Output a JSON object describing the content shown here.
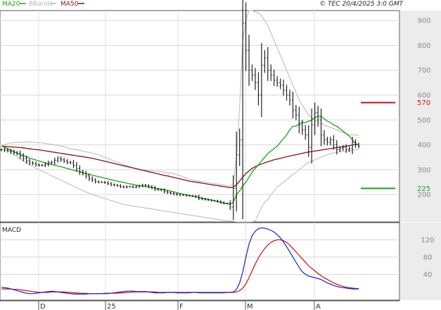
{
  "header": {
    "legend": [
      {
        "label": "MA20",
        "color": "#19a51a"
      },
      {
        "label": "BBands",
        "color": "#b8b8b8"
      },
      {
        "label": "MA50",
        "color": "#8b1010"
      }
    ],
    "source": "© TEC 20/4/2025 3:0 GMT"
  },
  "chart_data": [
    {
      "type": "candlestick",
      "x_ticks": [
        "D",
        "25",
        "F",
        "M",
        "A"
      ],
      "y_ticks": [
        200,
        300,
        400,
        500,
        600,
        700,
        800,
        900
      ],
      "ylim": [
        90,
        940
      ],
      "grid": true,
      "legend_placement": "top-left",
      "colors": {
        "price": "#222222",
        "ma20": "#19a51a",
        "ma50": "#8b1010",
        "bbands": "#b8b8b8"
      },
      "reference_lines": [
        {
          "label": "570",
          "value": 570,
          "color": "#cc1111"
        },
        {
          "label": "225",
          "value": 225,
          "color": "#19a51a"
        }
      ],
      "series": {
        "price_close": [
          380,
          378,
          376,
          372,
          368,
          365,
          355,
          345,
          335,
          328,
          325,
          320,
          318,
          318,
          322,
          328,
          330,
          338,
          345,
          340,
          335,
          330,
          328,
          318,
          305,
          292,
          285,
          275,
          265,
          258,
          252,
          250,
          250,
          248,
          244,
          240,
          238,
          236,
          232,
          230,
          232,
          232,
          230,
          232,
          235,
          238,
          236,
          232,
          228,
          222,
          220,
          218,
          212,
          208,
          205,
          202,
          200,
          198,
          198,
          196,
          195,
          194,
          192,
          185,
          182,
          180,
          178,
          176,
          175,
          172,
          168,
          165,
          165,
          150,
          225,
          360,
          420,
          890,
          780,
          700,
          680,
          650,
          600,
          720,
          750,
          700,
          680,
          660,
          650,
          640,
          620,
          600,
          580,
          540,
          520,
          480,
          460,
          440,
          390,
          480,
          530,
          500,
          440,
          420,
          410,
          420,
          400,
          380,
          385,
          390,
          380,
          385,
          410,
          400,
          395
        ],
        "ma20": [
          395,
          390,
          385,
          379,
          373,
          367,
          362,
          357,
          352,
          347,
          343,
          339,
          335,
          331,
          328,
          324,
          321,
          318,
          315,
          312,
          309,
          305,
          302,
          298,
          295,
          291,
          288,
          284,
          281,
          278,
          275,
          272,
          269,
          266,
          263,
          260,
          257,
          254,
          251,
          249,
          246,
          243,
          241,
          238,
          236,
          234,
          232,
          230,
          228,
          226,
          224,
          222,
          220,
          217,
          214,
          211,
          208,
          205,
          202,
          199,
          196,
          193,
          190,
          188,
          186,
          184,
          181,
          178,
          175,
          172,
          169,
          166,
          163,
          161,
          170,
          200,
          215,
          235,
          250,
          270,
          290,
          305,
          320,
          335,
          350,
          365,
          375,
          385,
          395,
          410,
          425,
          440,
          460,
          475,
          475,
          485,
          490,
          490,
          495,
          500,
          510,
          515,
          515,
          505,
          495,
          490,
          480,
          475,
          465,
          455,
          445,
          435,
          420,
          405,
          400
        ],
        "ma50": [
          395,
          394,
          393,
          392,
          391,
          390,
          389,
          388,
          386,
          384,
          382,
          381,
          380,
          378,
          376,
          374,
          372,
          370,
          368,
          366,
          364,
          362,
          360,
          358,
          356,
          354,
          352,
          350,
          348,
          346,
          343,
          340,
          337,
          334,
          331,
          328,
          325,
          322,
          319,
          316,
          313,
          310,
          307,
          304,
          301,
          298,
          295,
          292,
          289,
          286,
          283,
          280,
          277,
          275,
          272,
          269,
          266,
          263,
          260,
          257,
          254,
          252,
          250,
          248,
          246,
          244,
          242,
          240,
          238,
          236,
          234,
          232,
          230,
          228,
          230,
          240,
          255,
          270,
          285,
          295,
          305,
          312,
          318,
          323,
          328,
          332,
          336,
          340,
          343,
          346,
          349,
          352,
          355,
          358,
          360,
          363,
          366,
          369,
          371,
          373,
          375,
          377,
          379,
          381,
          383,
          385,
          387,
          389,
          391,
          393,
          395,
          397,
          399,
          401,
          403
        ],
        "bb_upper": [
          400,
          400,
          405,
          408,
          408,
          410,
          410,
          410,
          412,
          412,
          410,
          410,
          408,
          408,
          406,
          404,
          402,
          400,
          398,
          395,
          392,
          388,
          385,
          382,
          380,
          378,
          375,
          372,
          370,
          367,
          364,
          360,
          355,
          350,
          345,
          340,
          335,
          330,
          325,
          320,
          316,
          312,
          308,
          305,
          302,
          300,
          298,
          296,
          295,
          294,
          294,
          292,
          290,
          288,
          286,
          284,
          280,
          276,
          272,
          266,
          262,
          258,
          256,
          254,
          252,
          250,
          248,
          246,
          244,
          242,
          240,
          238,
          236,
          234,
          245,
          350,
          550,
          820,
          900,
          940,
          940,
          935,
          930,
          920,
          900,
          880,
          850,
          820,
          790,
          760,
          730,
          700,
          670,
          640,
          610,
          580,
          560,
          540,
          520,
          510,
          500,
          490,
          485,
          480,
          475,
          470,
          465,
          460,
          455,
          450,
          445,
          440,
          440,
          440,
          438
        ],
        "bb_lower": [
          395,
          388,
          378,
          368,
          360,
          352,
          344,
          336,
          328,
          320,
          313,
          306,
          300,
          294,
          288,
          282,
          276,
          270,
          264,
          258,
          252,
          246,
          240,
          234,
          228,
          222,
          216,
          210,
          205,
          200,
          196,
          192,
          188,
          184,
          180,
          176,
          172,
          168,
          164,
          160,
          158,
          156,
          154,
          152,
          150,
          148,
          146,
          144,
          142,
          140,
          138,
          136,
          134,
          132,
          130,
          128,
          126,
          124,
          122,
          120,
          118,
          116,
          114,
          112,
          110,
          108,
          106,
          104,
          102,
          100,
          98,
          96,
          95,
          94,
          92,
          90,
          90,
          90,
          90,
          90,
          90,
          95,
          120,
          150,
          170,
          180,
          200,
          215,
          230,
          240,
          250,
          260,
          270,
          280,
          290,
          300,
          310,
          320,
          330,
          335,
          340,
          345,
          350,
          355,
          360,
          365,
          368,
          370,
          372,
          374,
          375,
          376,
          378,
          380,
          381
        ]
      }
    },
    {
      "type": "line",
      "title": "MACD",
      "y_ticks": [
        40,
        80,
        120
      ],
      "ylim": [
        -20,
        160
      ],
      "grid": true,
      "series": {
        "macd": [
          10,
          9,
          8,
          6,
          4,
          2,
          0,
          -2,
          -4,
          -5,
          -5,
          -4,
          -3,
          -2,
          -1,
          0,
          1,
          0,
          -1,
          -2,
          -3,
          -4,
          -5,
          -6,
          -6,
          -6,
          -6,
          -6,
          -5,
          -5,
          -5,
          -5,
          -5,
          -4,
          -4,
          -4,
          -3,
          -2,
          -1,
          0,
          1,
          1,
          1,
          0,
          0,
          0,
          0,
          -1,
          -2,
          -3,
          -3,
          -3,
          -3,
          -2,
          -2,
          -2,
          -3,
          -3,
          -3,
          -3,
          -3,
          -2,
          -2,
          -3,
          -3,
          -3,
          -3,
          -3,
          -3,
          -3,
          -3,
          -3,
          -2,
          -2,
          -1,
          5,
          20,
          45,
          80,
          110,
          130,
          140,
          146,
          148,
          147,
          145,
          142,
          138,
          132,
          125,
          115,
          104,
          92,
          80,
          68,
          56,
          46,
          40,
          36,
          34,
          32,
          30,
          28,
          24,
          20,
          17,
          14,
          12,
          10,
          9,
          8,
          7,
          6,
          6,
          6
        ],
        "signal": [
          6,
          6,
          6,
          6,
          5,
          5,
          4,
          3,
          2,
          1,
          0,
          -1,
          -2,
          -2,
          -2,
          -2,
          -1,
          -1,
          -1,
          -1,
          -1,
          -2,
          -2,
          -3,
          -3,
          -4,
          -4,
          -4,
          -5,
          -5,
          -5,
          -5,
          -5,
          -5,
          -5,
          -4,
          -4,
          -4,
          -3,
          -3,
          -2,
          -2,
          -1,
          -1,
          -1,
          -1,
          -1,
          -1,
          -1,
          -1,
          -2,
          -2,
          -2,
          -2,
          -2,
          -2,
          -2,
          -2,
          -2,
          -2,
          -2,
          -2,
          -2,
          -2,
          -2,
          -2,
          -2,
          -2,
          -2,
          -2,
          -2,
          -2,
          -2,
          -2,
          -2,
          -1,
          2,
          8,
          18,
          32,
          48,
          64,
          78,
          90,
          100,
          108,
          114,
          118,
          120,
          120,
          118,
          114,
          108,
          100,
          92,
          84,
          76,
          68,
          60,
          54,
          48,
          42,
          37,
          32,
          28,
          24,
          20,
          17,
          14,
          12,
          10,
          9,
          8,
          7,
          7
        ]
      }
    }
  ]
}
